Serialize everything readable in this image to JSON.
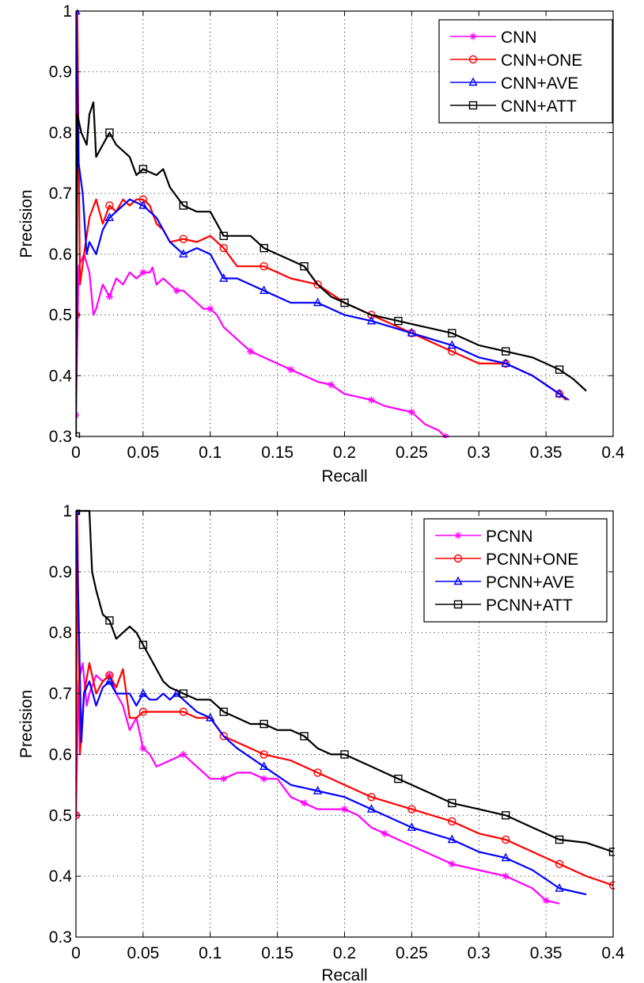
{
  "chart_data": [
    {
      "type": "line",
      "xlabel": "Recall",
      "ylabel": "Precision",
      "xlim": [
        0,
        0.4
      ],
      "ylim": [
        0.3,
        1
      ],
      "x_ticks": [
        "0",
        "0.05",
        "0.1",
        "0.15",
        "0.2",
        "0.25",
        "0.3",
        "0.35",
        "0.4"
      ],
      "y_ticks": [
        "0.3",
        "0.4",
        "0.5",
        "0.6",
        "0.7",
        "0.8",
        "0.9",
        "1"
      ],
      "grid": true,
      "legend_position": "top-right",
      "series": [
        {
          "name": "CNN",
          "color": "#ff00ff",
          "marker": "star",
          "x": [
            0,
            0.002,
            0.006,
            0.01,
            0.013,
            0.015,
            0.02,
            0.025,
            0.03,
            0.035,
            0.04,
            0.045,
            0.05,
            0.055,
            0.057,
            0.06,
            0.065,
            0.07,
            0.075,
            0.08,
            0.085,
            0.09,
            0.095,
            0.1,
            0.105,
            0.11,
            0.12,
            0.13,
            0.14,
            0.15,
            0.16,
            0.17,
            0.18,
            0.19,
            0.2,
            0.21,
            0.22,
            0.23,
            0.24,
            0.25,
            0.26,
            0.27,
            0.275,
            0.278
          ],
          "y": [
            0.335,
            0.58,
            0.6,
            0.57,
            0.5,
            0.51,
            0.55,
            0.53,
            0.56,
            0.55,
            0.57,
            0.56,
            0.57,
            0.57,
            0.578,
            0.55,
            0.56,
            0.55,
            0.54,
            0.54,
            0.53,
            0.52,
            0.51,
            0.51,
            0.5,
            0.48,
            0.46,
            0.44,
            0.43,
            0.42,
            0.41,
            0.4,
            0.39,
            0.385,
            0.37,
            0.365,
            0.36,
            0.35,
            0.345,
            0.34,
            0.32,
            0.31,
            0.3,
            0.3
          ]
        },
        {
          "name": "CNN+ONE",
          "color": "#ff0000",
          "marker": "circle",
          "x": [
            0,
            0.001,
            0.003,
            0.006,
            0.01,
            0.015,
            0.02,
            0.025,
            0.03,
            0.035,
            0.04,
            0.045,
            0.05,
            0.055,
            0.06,
            0.065,
            0.07,
            0.08,
            0.09,
            0.1,
            0.11,
            0.12,
            0.14,
            0.15,
            0.16,
            0.18,
            0.2,
            0.22,
            0.25,
            0.28,
            0.3,
            0.32,
            0.34,
            0.36,
            0.365
          ],
          "y": [
            0.5,
            1.0,
            0.55,
            0.6,
            0.66,
            0.69,
            0.65,
            0.68,
            0.67,
            0.69,
            0.68,
            0.69,
            0.69,
            0.68,
            0.65,
            0.64,
            0.62,
            0.625,
            0.62,
            0.63,
            0.61,
            0.58,
            0.58,
            0.57,
            0.56,
            0.55,
            0.52,
            0.5,
            0.47,
            0.44,
            0.42,
            0.42,
            0.4,
            0.37,
            0.36
          ]
        },
        {
          "name": "CNN+AVE",
          "color": "#0000ff",
          "marker": "triangle",
          "x": [
            0,
            0.002,
            0.005,
            0.008,
            0.01,
            0.015,
            0.02,
            0.025,
            0.03,
            0.035,
            0.04,
            0.045,
            0.05,
            0.06,
            0.07,
            0.08,
            0.09,
            0.1,
            0.11,
            0.12,
            0.13,
            0.14,
            0.15,
            0.16,
            0.18,
            0.2,
            0.22,
            0.25,
            0.28,
            0.3,
            0.32,
            0.34,
            0.36,
            0.367
          ],
          "y": [
            1.0,
            0.75,
            0.7,
            0.6,
            0.62,
            0.6,
            0.64,
            0.66,
            0.67,
            0.68,
            0.69,
            0.685,
            0.68,
            0.66,
            0.62,
            0.6,
            0.61,
            0.6,
            0.56,
            0.56,
            0.55,
            0.54,
            0.53,
            0.52,
            0.52,
            0.5,
            0.49,
            0.47,
            0.45,
            0.43,
            0.42,
            0.4,
            0.37,
            0.36
          ]
        },
        {
          "name": "CNN+ATT",
          "color": "#000000",
          "marker": "square",
          "x": [
            0,
            0.001,
            0.004,
            0.008,
            0.01,
            0.013,
            0.015,
            0.02,
            0.025,
            0.03,
            0.035,
            0.04,
            0.045,
            0.05,
            0.06,
            0.065,
            0.07,
            0.08,
            0.09,
            0.1,
            0.11,
            0.12,
            0.13,
            0.14,
            0.15,
            0.16,
            0.17,
            0.18,
            0.19,
            0.2,
            0.21,
            0.22,
            0.24,
            0.26,
            0.28,
            0.3,
            0.32,
            0.34,
            0.36,
            0.37,
            0.38
          ],
          "y": [
            0.3,
            0.83,
            0.8,
            0.78,
            0.83,
            0.85,
            0.76,
            0.78,
            0.8,
            0.78,
            0.77,
            0.76,
            0.73,
            0.74,
            0.73,
            0.74,
            0.71,
            0.68,
            0.67,
            0.67,
            0.63,
            0.63,
            0.63,
            0.61,
            0.6,
            0.59,
            0.58,
            0.55,
            0.53,
            0.52,
            0.51,
            0.5,
            0.49,
            0.48,
            0.47,
            0.45,
            0.44,
            0.43,
            0.41,
            0.395,
            0.375
          ]
        }
      ]
    },
    {
      "type": "line",
      "xlabel": "Recall",
      "ylabel": "Precision",
      "xlim": [
        0,
        0.4
      ],
      "ylim": [
        0.3,
        1
      ],
      "x_ticks": [
        "0",
        "0.05",
        "0.1",
        "0.15",
        "0.2",
        "0.25",
        "0.3",
        "0.35",
        "0.4"
      ],
      "y_ticks": [
        "0.3",
        "0.4",
        "0.5",
        "0.6",
        "0.7",
        "0.8",
        "0.9",
        "1"
      ],
      "grid": true,
      "legend_position": "top-right",
      "series": [
        {
          "name": "PCNN",
          "color": "#ff00ff",
          "marker": "star",
          "x": [
            0,
            0.002,
            0.005,
            0.008,
            0.01,
            0.015,
            0.02,
            0.025,
            0.03,
            0.035,
            0.04,
            0.045,
            0.05,
            0.055,
            0.06,
            0.07,
            0.08,
            0.09,
            0.1,
            0.11,
            0.12,
            0.13,
            0.14,
            0.15,
            0.16,
            0.17,
            0.18,
            0.19,
            0.2,
            0.21,
            0.22,
            0.23,
            0.25,
            0.28,
            0.3,
            0.32,
            0.34,
            0.35,
            0.36
          ],
          "y": [
            0.5,
            0.72,
            0.75,
            0.68,
            0.7,
            0.73,
            0.72,
            0.73,
            0.7,
            0.68,
            0.64,
            0.66,
            0.61,
            0.6,
            0.58,
            0.59,
            0.6,
            0.58,
            0.56,
            0.56,
            0.57,
            0.57,
            0.56,
            0.56,
            0.53,
            0.52,
            0.51,
            0.51,
            0.51,
            0.5,
            0.48,
            0.47,
            0.45,
            0.42,
            0.41,
            0.4,
            0.38,
            0.36,
            0.355
          ]
        },
        {
          "name": "PCNN+ONE",
          "color": "#ff0000",
          "marker": "circle",
          "x": [
            0,
            0.001,
            0.003,
            0.006,
            0.01,
            0.015,
            0.02,
            0.025,
            0.03,
            0.035,
            0.04,
            0.045,
            0.05,
            0.06,
            0.07,
            0.08,
            0.09,
            0.1,
            0.11,
            0.12,
            0.14,
            0.16,
            0.18,
            0.2,
            0.22,
            0.25,
            0.28,
            0.3,
            0.32,
            0.34,
            0.36,
            0.38,
            0.4
          ],
          "y": [
            0.5,
            1.0,
            0.6,
            0.7,
            0.75,
            0.7,
            0.72,
            0.73,
            0.71,
            0.74,
            0.66,
            0.66,
            0.67,
            0.67,
            0.67,
            0.67,
            0.66,
            0.66,
            0.63,
            0.62,
            0.6,
            0.59,
            0.57,
            0.55,
            0.53,
            0.51,
            0.49,
            0.47,
            0.46,
            0.44,
            0.42,
            0.4,
            0.385
          ]
        },
        {
          "name": "PCNN+AVE",
          "color": "#0000ff",
          "marker": "triangle",
          "x": [
            0,
            0.002,
            0.004,
            0.006,
            0.01,
            0.015,
            0.02,
            0.025,
            0.03,
            0.035,
            0.04,
            0.045,
            0.05,
            0.055,
            0.06,
            0.065,
            0.07,
            0.075,
            0.08,
            0.09,
            0.1,
            0.11,
            0.12,
            0.14,
            0.16,
            0.18,
            0.2,
            0.22,
            0.25,
            0.28,
            0.3,
            0.32,
            0.34,
            0.36,
            0.38
          ],
          "y": [
            1.0,
            0.83,
            0.62,
            0.7,
            0.72,
            0.68,
            0.71,
            0.72,
            0.7,
            0.7,
            0.7,
            0.68,
            0.7,
            0.69,
            0.69,
            0.7,
            0.69,
            0.7,
            0.69,
            0.67,
            0.66,
            0.63,
            0.61,
            0.58,
            0.55,
            0.54,
            0.53,
            0.51,
            0.48,
            0.46,
            0.44,
            0.43,
            0.41,
            0.38,
            0.37
          ]
        },
        {
          "name": "PCNN+ATT",
          "color": "#000000",
          "marker": "square",
          "x": [
            0,
            0.005,
            0.01,
            0.012,
            0.015,
            0.02,
            0.025,
            0.03,
            0.035,
            0.04,
            0.045,
            0.05,
            0.055,
            0.06,
            0.065,
            0.07,
            0.08,
            0.09,
            0.1,
            0.11,
            0.12,
            0.13,
            0.14,
            0.15,
            0.16,
            0.17,
            0.18,
            0.19,
            0.2,
            0.22,
            0.24,
            0.26,
            0.28,
            0.3,
            0.32,
            0.34,
            0.36,
            0.38,
            0.4
          ],
          "y": [
            1.0,
            1.0,
            1.0,
            0.9,
            0.87,
            0.83,
            0.82,
            0.79,
            0.8,
            0.81,
            0.8,
            0.78,
            0.76,
            0.74,
            0.72,
            0.71,
            0.7,
            0.69,
            0.69,
            0.67,
            0.66,
            0.65,
            0.65,
            0.64,
            0.64,
            0.63,
            0.61,
            0.6,
            0.6,
            0.58,
            0.56,
            0.54,
            0.52,
            0.51,
            0.5,
            0.48,
            0.46,
            0.455,
            0.44
          ]
        }
      ]
    }
  ]
}
